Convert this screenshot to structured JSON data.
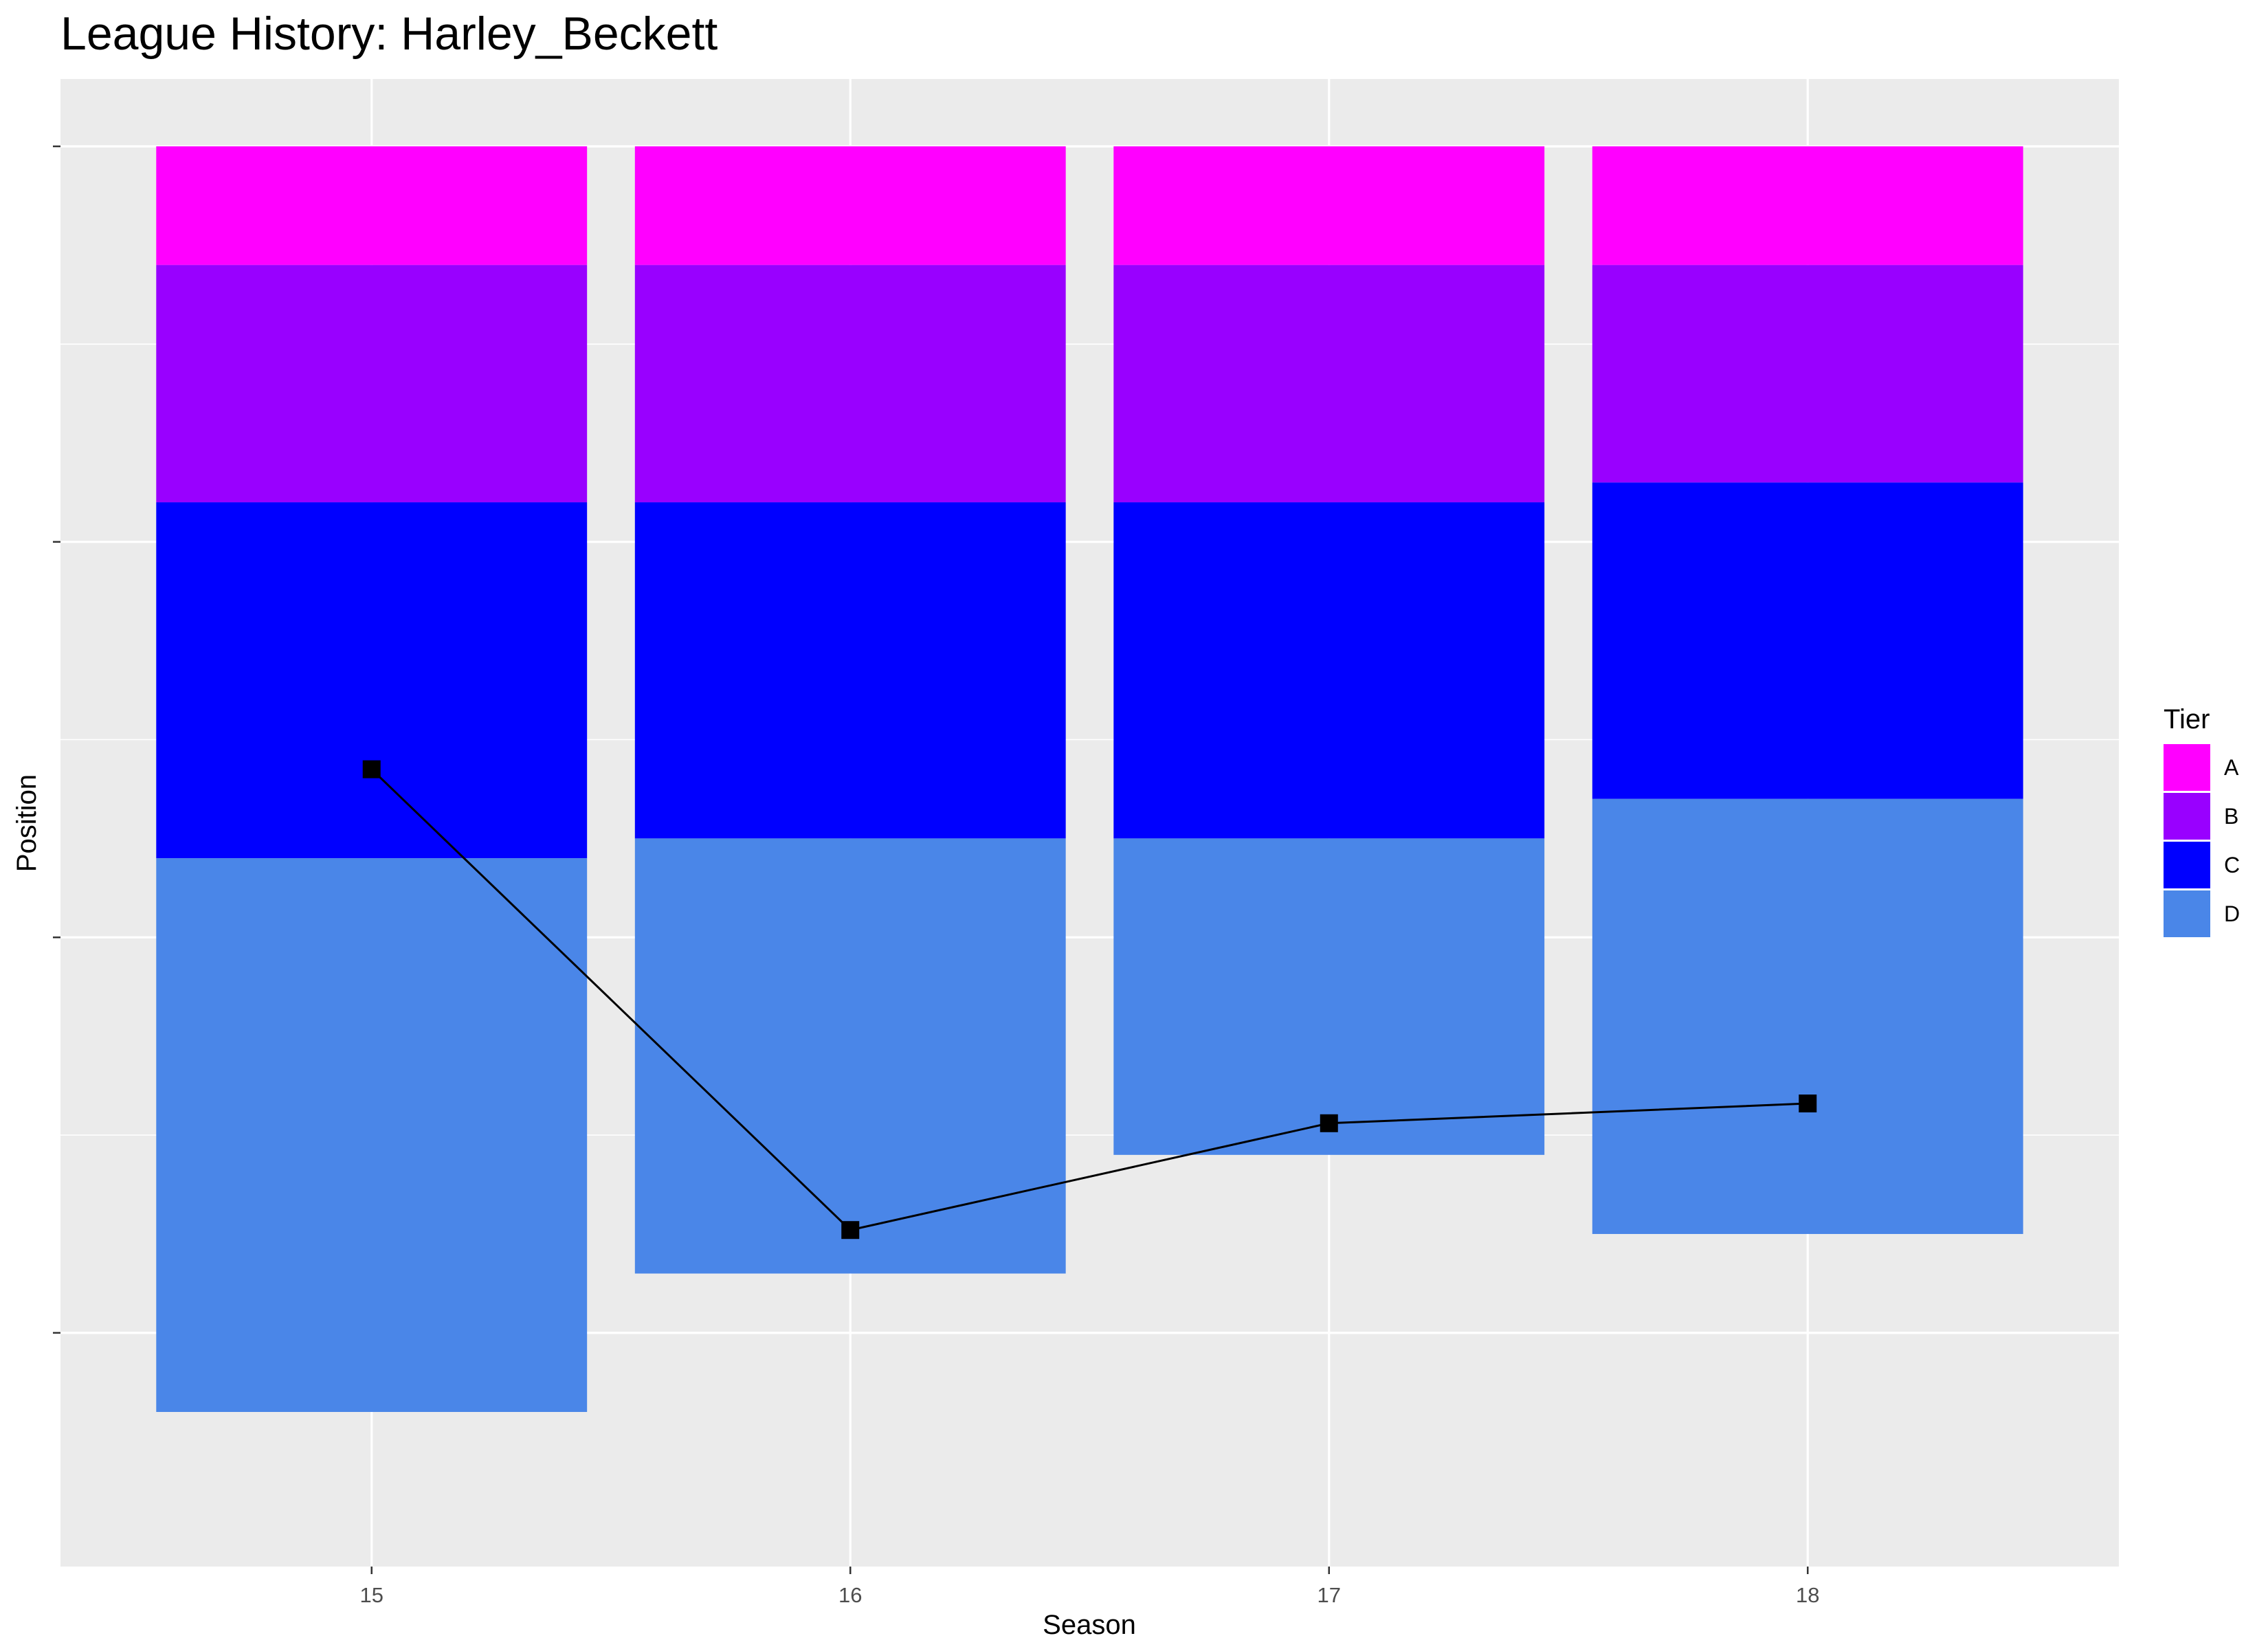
{
  "chart_data": {
    "type": "bar",
    "title": "League History: Harley_Beckett",
    "xlabel": "Season",
    "ylabel": "Position",
    "x_ticks": [
      "15",
      "16",
      "17",
      "18"
    ],
    "y_ticks_labeled": false,
    "ylim": [
      0,
      33.5
    ],
    "y_inverted": true,
    "grid": true,
    "legend": {
      "title": "Tier",
      "placement": "right",
      "entries": [
        {
          "key": "A",
          "color": "#FF00FF"
        },
        {
          "key": "B",
          "color": "#9900FF"
        },
        {
          "key": "C",
          "color": "#0000FF"
        },
        {
          "key": "D",
          "color": "#4A86E8"
        }
      ]
    },
    "seasons": [
      {
        "season": 15,
        "tiers": [
          {
            "tier": "A",
            "from": 0,
            "to": 3
          },
          {
            "tier": "B",
            "from": 3,
            "to": 9
          },
          {
            "tier": "C",
            "from": 9,
            "to": 18
          },
          {
            "tier": "D",
            "from": 18,
            "to": 32
          }
        ]
      },
      {
        "season": 16,
        "tiers": [
          {
            "tier": "A",
            "from": 0,
            "to": 3
          },
          {
            "tier": "B",
            "from": 3,
            "to": 9
          },
          {
            "tier": "C",
            "from": 9,
            "to": 17.5
          },
          {
            "tier": "D",
            "from": 17.5,
            "to": 28.5
          }
        ]
      },
      {
        "season": 17,
        "tiers": [
          {
            "tier": "A",
            "from": 0,
            "to": 3
          },
          {
            "tier": "B",
            "from": 3,
            "to": 9
          },
          {
            "tier": "C",
            "from": 9,
            "to": 17.5
          },
          {
            "tier": "D",
            "from": 17.5,
            "to": 25.5
          }
        ]
      },
      {
        "season": 18,
        "tiers": [
          {
            "tier": "A",
            "from": 0,
            "to": 3
          },
          {
            "tier": "B",
            "from": 3,
            "to": 8.5
          },
          {
            "tier": "C",
            "from": 8.5,
            "to": 16.5
          },
          {
            "tier": "D",
            "from": 16.5,
            "to": 27.5
          }
        ]
      }
    ],
    "series": [
      {
        "x": [
          15,
          16,
          17,
          18
        ],
        "values": [
          15.75,
          27.4,
          24.7,
          24.2
        ]
      }
    ]
  }
}
